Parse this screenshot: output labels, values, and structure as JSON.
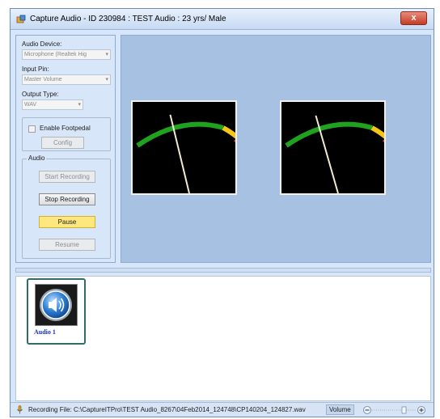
{
  "window": {
    "title": "Capture Audio - ID 230984 : TEST Audio : 23 yrs/ Male",
    "close_glyph": "x"
  },
  "settings": {
    "audio_device_label": "Audio Device:",
    "audio_device_value": "Microphone (Realtek Hig",
    "input_pin_label": "Input Pin:",
    "input_pin_value": "Master Volume",
    "output_type_label": "Output Type:",
    "output_type_value": "WAV",
    "footpedal_label": "Enable Footpedal",
    "footpedal_checked": false,
    "config_label": "Config"
  },
  "audio_group": {
    "title": "Audio",
    "start_label": "Start Recording",
    "stop_label": "Stop Recording",
    "pause_label": "Pause",
    "resume_label": "Resume"
  },
  "meters": [
    {
      "level": 0.33
    },
    {
      "level": 0.3
    }
  ],
  "recordings": [
    {
      "label": "Audio 1",
      "icon": "speaker-icon"
    }
  ],
  "status": {
    "recording_file": "Recording File: C:\\CaptureITPro\\TEST Audio_8267\\04Feb2014_124748\\CP140204_124827.wav",
    "volume_label": "Volume"
  },
  "colors": {
    "meter_green": "#1fa31f",
    "meter_yellow": "#f5c518",
    "meter_red": "#e0301e",
    "needle": "#f2ead0",
    "pause_button": "#ffe780"
  }
}
